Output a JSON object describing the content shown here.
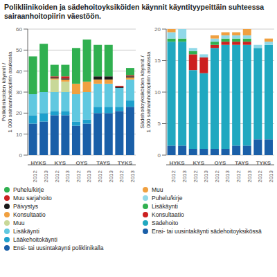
{
  "chart_data": [
    {
      "type": "bar",
      "stacked": true,
      "grid": true,
      "legend": "bottom",
      "title": "Polikliinikoiden ja sädehoitoyksiköiden käynnit käyntityypeittäin suhteessa sairaanhoitopiirin väestöön.",
      "y_label": "Polikliinikoiden käynnit /\n1 000 sairaanhoitopiirin asukasta",
      "groups": [
        "HYKS",
        "KYS",
        "OYS",
        "TAYS",
        "TYKS"
      ],
      "categories": [
        "2012",
        "2013",
        "2012",
        "2013",
        "2012",
        "2013",
        "2012",
        "2013",
        "2012",
        "2013"
      ],
      "ylim": [
        0,
        60
      ],
      "yticks": [
        0,
        10,
        20,
        30,
        40,
        50,
        60
      ],
      "series": [
        {
          "name": "Ensi- tai uusintakäynti poliklinikalla",
          "color": "#1a5fa8",
          "values": [
            15,
            16,
            19,
            19,
            14,
            15,
            20,
            20,
            21,
            23
          ]
        },
        {
          "name": "Lääkehoitokäynti",
          "color": "#1ea0cc",
          "values": [
            4,
            4,
            2,
            2,
            2,
            2,
            3,
            3,
            2,
            3
          ]
        },
        {
          "name": "Lisäkäynti",
          "color": "#60c8e0",
          "values": [
            10,
            10,
            9,
            9,
            13,
            13,
            11,
            11,
            9,
            10
          ]
        },
        {
          "name": "Muu",
          "color": "#c8d898",
          "values": [
            0,
            0,
            6,
            5,
            0,
            0,
            0,
            0,
            0,
            0
          ]
        },
        {
          "name": "Konsultaatio",
          "color": "#f0a040",
          "values": [
            0,
            0,
            0.5,
            1,
            5,
            5,
            2,
            2,
            0,
            1
          ]
        },
        {
          "name": "Päivystys",
          "color": "#1a1a1a",
          "values": [
            0,
            0,
            0.5,
            0.5,
            0,
            0,
            1.5,
            1.5,
            0.5,
            0.5
          ]
        },
        {
          "name": "Muu sarjahoito",
          "color": "#cc2020",
          "values": [
            0,
            0,
            0.5,
            1,
            0,
            0,
            0,
            0,
            0.5,
            0.5
          ]
        },
        {
          "name": "Puhelu/kirje",
          "color": "#30b050",
          "values": [
            18,
            23,
            5.5,
            5.5,
            17,
            20,
            15,
            15,
            0,
            3.5
          ]
        }
      ]
    },
    {
      "type": "bar",
      "stacked": true,
      "grid": true,
      "legend": "bottom",
      "y_label": "Sädehoitoyksiköiden käynnit /\n1 000 sairaanhoitopiirin asukasta",
      "groups": [
        "HYKS",
        "KYS",
        "OYS",
        "TAYS",
        "TYKS"
      ],
      "categories": [
        "2012",
        "2013",
        "2012",
        "2013",
        "2012",
        "2013",
        "2012",
        "2013",
        "2012",
        "2013"
      ],
      "ylim": [
        0,
        20
      ],
      "yticks": [
        0,
        5,
        10,
        15,
        20
      ],
      "series": [
        {
          "name": "Ensi- tai uusintakäynti sädehoitoyksikössä",
          "color": "#1a5fa8",
          "values": [
            1.5,
            1.5,
            1,
            1,
            1,
            1,
            1.5,
            1.5,
            2.5,
            2.5
          ]
        },
        {
          "name": "Sädehoito",
          "color": "#20a8c0",
          "values": [
            16.5,
            16.5,
            12.5,
            12,
            16,
            16.5,
            16,
            16,
            14.5,
            15
          ]
        },
        {
          "name": "Konsultaatio",
          "color": "#cc2020",
          "values": [
            0,
            0,
            2.5,
            2.5,
            0.5,
            0.5,
            0.5,
            0.5,
            0,
            0
          ]
        },
        {
          "name": "Lisäkäynti",
          "color": "#30b050",
          "values": [
            0.5,
            0.5,
            0.5,
            0,
            0.5,
            0.5,
            0.5,
            0.5,
            0,
            0
          ]
        },
        {
          "name": "Puhelu/kirje",
          "color": "#90d8e8",
          "values": [
            1,
            1.5,
            0.5,
            0.5,
            0.5,
            0.5,
            0.5,
            0.5,
            0.5,
            0.5
          ]
        },
        {
          "name": "Muu",
          "color": "#f0a040",
          "values": [
            0.5,
            0,
            0,
            0,
            0.5,
            0.5,
            0.5,
            1,
            0,
            0.5
          ]
        }
      ]
    }
  ]
}
